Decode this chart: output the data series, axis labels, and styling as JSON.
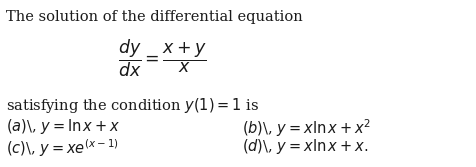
{
  "title_line": "The solution of the differential equation",
  "equation": "$\\dfrac{dy}{dx} = \\dfrac{x + y}{x}$",
  "condition_line": "satisfying the condition $y(1) = 1$ is",
  "option_a": "$(a)$\\, $y = \\ln x + x$",
  "option_b": "$(b)$\\, $y = x \\ln x + x^2$",
  "option_c": "$(c)$\\, $y = xe^{(x-1)}$",
  "option_d": "$(d)$\\, $y = x \\ln x + x.$",
  "bg_color": "#ffffff",
  "text_color": "#1a1a1a",
  "fontsize_main": 10.5,
  "fontsize_eq": 12.5
}
